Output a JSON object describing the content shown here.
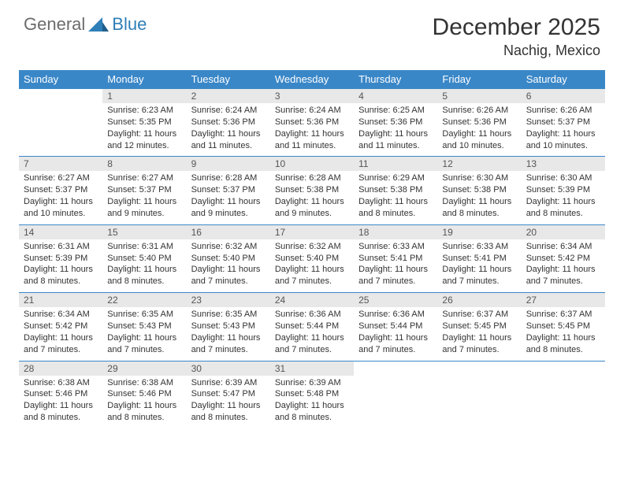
{
  "logo": {
    "text_general": "General",
    "text_blue": "Blue"
  },
  "title": "December 2025",
  "location": "Nachig, Mexico",
  "colors": {
    "header_bg": "#3a87c8",
    "header_text": "#ffffff",
    "daynum_bg": "#e8e8e8",
    "border": "#3a87c8",
    "body_text": "#333333"
  },
  "day_headers": [
    "Sunday",
    "Monday",
    "Tuesday",
    "Wednesday",
    "Thursday",
    "Friday",
    "Saturday"
  ],
  "weeks": [
    {
      "nums": [
        "",
        "1",
        "2",
        "3",
        "4",
        "5",
        "6"
      ],
      "cells": [
        null,
        {
          "sunrise": "Sunrise: 6:23 AM",
          "sunset": "Sunset: 5:35 PM",
          "day1": "Daylight: 11 hours",
          "day2": "and 12 minutes."
        },
        {
          "sunrise": "Sunrise: 6:24 AM",
          "sunset": "Sunset: 5:36 PM",
          "day1": "Daylight: 11 hours",
          "day2": "and 11 minutes."
        },
        {
          "sunrise": "Sunrise: 6:24 AM",
          "sunset": "Sunset: 5:36 PM",
          "day1": "Daylight: 11 hours",
          "day2": "and 11 minutes."
        },
        {
          "sunrise": "Sunrise: 6:25 AM",
          "sunset": "Sunset: 5:36 PM",
          "day1": "Daylight: 11 hours",
          "day2": "and 11 minutes."
        },
        {
          "sunrise": "Sunrise: 6:26 AM",
          "sunset": "Sunset: 5:36 PM",
          "day1": "Daylight: 11 hours",
          "day2": "and 10 minutes."
        },
        {
          "sunrise": "Sunrise: 6:26 AM",
          "sunset": "Sunset: 5:37 PM",
          "day1": "Daylight: 11 hours",
          "day2": "and 10 minutes."
        }
      ]
    },
    {
      "nums": [
        "7",
        "8",
        "9",
        "10",
        "11",
        "12",
        "13"
      ],
      "cells": [
        {
          "sunrise": "Sunrise: 6:27 AM",
          "sunset": "Sunset: 5:37 PM",
          "day1": "Daylight: 11 hours",
          "day2": "and 10 minutes."
        },
        {
          "sunrise": "Sunrise: 6:27 AM",
          "sunset": "Sunset: 5:37 PM",
          "day1": "Daylight: 11 hours",
          "day2": "and 9 minutes."
        },
        {
          "sunrise": "Sunrise: 6:28 AM",
          "sunset": "Sunset: 5:37 PM",
          "day1": "Daylight: 11 hours",
          "day2": "and 9 minutes."
        },
        {
          "sunrise": "Sunrise: 6:28 AM",
          "sunset": "Sunset: 5:38 PM",
          "day1": "Daylight: 11 hours",
          "day2": "and 9 minutes."
        },
        {
          "sunrise": "Sunrise: 6:29 AM",
          "sunset": "Sunset: 5:38 PM",
          "day1": "Daylight: 11 hours",
          "day2": "and 8 minutes."
        },
        {
          "sunrise": "Sunrise: 6:30 AM",
          "sunset": "Sunset: 5:38 PM",
          "day1": "Daylight: 11 hours",
          "day2": "and 8 minutes."
        },
        {
          "sunrise": "Sunrise: 6:30 AM",
          "sunset": "Sunset: 5:39 PM",
          "day1": "Daylight: 11 hours",
          "day2": "and 8 minutes."
        }
      ]
    },
    {
      "nums": [
        "14",
        "15",
        "16",
        "17",
        "18",
        "19",
        "20"
      ],
      "cells": [
        {
          "sunrise": "Sunrise: 6:31 AM",
          "sunset": "Sunset: 5:39 PM",
          "day1": "Daylight: 11 hours",
          "day2": "and 8 minutes."
        },
        {
          "sunrise": "Sunrise: 6:31 AM",
          "sunset": "Sunset: 5:40 PM",
          "day1": "Daylight: 11 hours",
          "day2": "and 8 minutes."
        },
        {
          "sunrise": "Sunrise: 6:32 AM",
          "sunset": "Sunset: 5:40 PM",
          "day1": "Daylight: 11 hours",
          "day2": "and 7 minutes."
        },
        {
          "sunrise": "Sunrise: 6:32 AM",
          "sunset": "Sunset: 5:40 PM",
          "day1": "Daylight: 11 hours",
          "day2": "and 7 minutes."
        },
        {
          "sunrise": "Sunrise: 6:33 AM",
          "sunset": "Sunset: 5:41 PM",
          "day1": "Daylight: 11 hours",
          "day2": "and 7 minutes."
        },
        {
          "sunrise": "Sunrise: 6:33 AM",
          "sunset": "Sunset: 5:41 PM",
          "day1": "Daylight: 11 hours",
          "day2": "and 7 minutes."
        },
        {
          "sunrise": "Sunrise: 6:34 AM",
          "sunset": "Sunset: 5:42 PM",
          "day1": "Daylight: 11 hours",
          "day2": "and 7 minutes."
        }
      ]
    },
    {
      "nums": [
        "21",
        "22",
        "23",
        "24",
        "25",
        "26",
        "27"
      ],
      "cells": [
        {
          "sunrise": "Sunrise: 6:34 AM",
          "sunset": "Sunset: 5:42 PM",
          "day1": "Daylight: 11 hours",
          "day2": "and 7 minutes."
        },
        {
          "sunrise": "Sunrise: 6:35 AM",
          "sunset": "Sunset: 5:43 PM",
          "day1": "Daylight: 11 hours",
          "day2": "and 7 minutes."
        },
        {
          "sunrise": "Sunrise: 6:35 AM",
          "sunset": "Sunset: 5:43 PM",
          "day1": "Daylight: 11 hours",
          "day2": "and 7 minutes."
        },
        {
          "sunrise": "Sunrise: 6:36 AM",
          "sunset": "Sunset: 5:44 PM",
          "day1": "Daylight: 11 hours",
          "day2": "and 7 minutes."
        },
        {
          "sunrise": "Sunrise: 6:36 AM",
          "sunset": "Sunset: 5:44 PM",
          "day1": "Daylight: 11 hours",
          "day2": "and 7 minutes."
        },
        {
          "sunrise": "Sunrise: 6:37 AM",
          "sunset": "Sunset: 5:45 PM",
          "day1": "Daylight: 11 hours",
          "day2": "and 7 minutes."
        },
        {
          "sunrise": "Sunrise: 6:37 AM",
          "sunset": "Sunset: 5:45 PM",
          "day1": "Daylight: 11 hours",
          "day2": "and 8 minutes."
        }
      ]
    },
    {
      "nums": [
        "28",
        "29",
        "30",
        "31",
        "",
        "",
        ""
      ],
      "cells": [
        {
          "sunrise": "Sunrise: 6:38 AM",
          "sunset": "Sunset: 5:46 PM",
          "day1": "Daylight: 11 hours",
          "day2": "and 8 minutes."
        },
        {
          "sunrise": "Sunrise: 6:38 AM",
          "sunset": "Sunset: 5:46 PM",
          "day1": "Daylight: 11 hours",
          "day2": "and 8 minutes."
        },
        {
          "sunrise": "Sunrise: 6:39 AM",
          "sunset": "Sunset: 5:47 PM",
          "day1": "Daylight: 11 hours",
          "day2": "and 8 minutes."
        },
        {
          "sunrise": "Sunrise: 6:39 AM",
          "sunset": "Sunset: 5:48 PM",
          "day1": "Daylight: 11 hours",
          "day2": "and 8 minutes."
        },
        null,
        null,
        null
      ]
    }
  ]
}
